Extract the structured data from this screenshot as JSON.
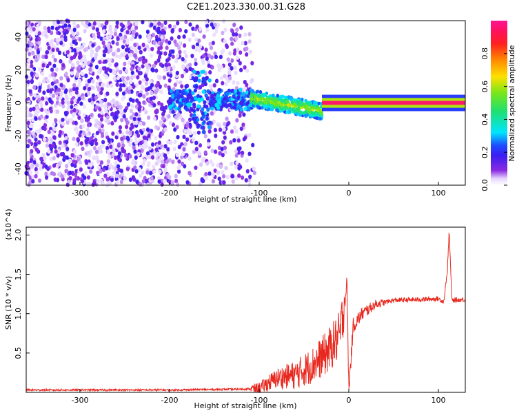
{
  "title": "C2E1.2023.330.00.31.G28",
  "chart_data": [
    {
      "type": "heatmap",
      "xlabel": "Height of straight line (km)",
      "ylabel": "Frequency (Hz)",
      "xlim": [
        -360,
        130
      ],
      "ylim": [
        -50,
        50
      ],
      "xticks": [
        -300,
        -200,
        -100,
        0,
        100
      ],
      "yticks": [
        -40,
        -20,
        0,
        20,
        40
      ],
      "grid": false,
      "colorbar": {
        "label": "Normalized spectral amplitude",
        "range": [
          0,
          1
        ],
        "ticks": [
          "0.0",
          "0.2",
          "0.4",
          "0.6",
          "0.8"
        ],
        "colormap": "hsv (violet-blue-cyan-green-yellow-orange-red-magenta)"
      },
      "description_regions": [
        {
          "x_range": [
            -360,
            -110
          ],
          "y_range": [
            -50,
            50
          ],
          "amplitude": "low (0.0-0.15), scattered noise"
        },
        {
          "x_range": [
            -200,
            -110
          ],
          "y_range": [
            -5,
            10
          ],
          "amplitude": "0.2-0.3 band near 0 Hz"
        },
        {
          "x_range": [
            -110,
            -30
          ],
          "y_range": [
            -15,
            8
          ],
          "amplitude": "0.3-0.6 sloping band"
        },
        {
          "x_range": [
            -30,
            130
          ],
          "y_range": [
            -2,
            2
          ],
          "amplitude": "0.8-1.0 narrow line at 0 Hz"
        }
      ]
    },
    {
      "type": "line",
      "xlabel": "Height of straight line (km)",
      "ylabel": "SNR (10 * v/v)",
      "y_multiplier": "(x10^4)",
      "xlim": [
        -360,
        130
      ],
      "ylim": [
        0,
        2.1
      ],
      "xticks": [
        -300,
        -200,
        -100,
        0,
        100
      ],
      "yticks": [
        "0.5",
        "1.0",
        "1.5",
        "2.0"
      ],
      "grid": false,
      "series": [
        {
          "color": "#e8281e",
          "x": [
            -360,
            -300,
            -200,
            -120,
            -100,
            -80,
            -60,
            -40,
            -25,
            -10,
            -2,
            0,
            5,
            15,
            30,
            50,
            80,
            100,
            106,
            110,
            112,
            115,
            130
          ],
          "y": [
            0.03,
            0.03,
            0.03,
            0.04,
            0.05,
            0.18,
            0.22,
            0.35,
            0.5,
            0.72,
            1.38,
            0.02,
            0.85,
            1.0,
            1.12,
            1.17,
            1.18,
            1.19,
            1.15,
            1.55,
            2.05,
            1.17,
            1.18
          ]
        }
      ]
    }
  ]
}
